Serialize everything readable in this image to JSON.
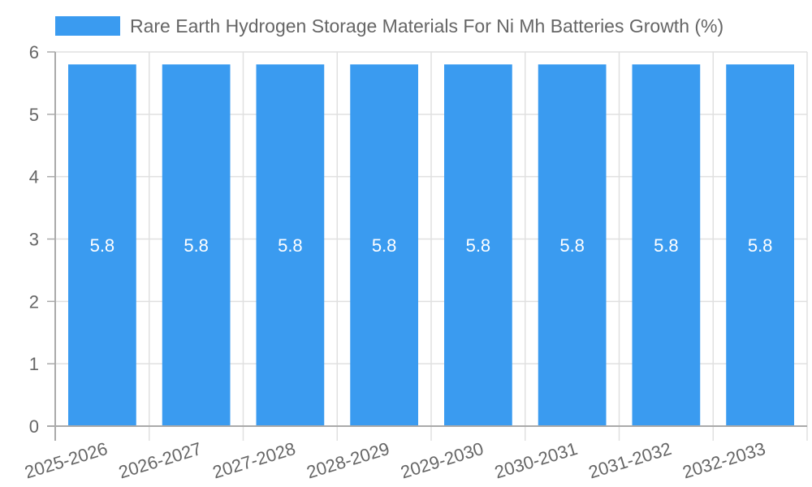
{
  "chart_data": {
    "type": "bar",
    "title": "",
    "xlabel": "",
    "ylabel": "",
    "legend": {
      "entries": [
        "Rare Earth Hydrogen Storage Materials For Ni Mh Batteries Growth (%)"
      ],
      "position": "top"
    },
    "categories": [
      "2025-2026",
      "2026-2027",
      "2027-2028",
      "2028-2029",
      "2029-2030",
      "2030-2031",
      "2031-2032",
      "2032-2033"
    ],
    "series": [
      {
        "name": "Rare Earth Hydrogen Storage Materials For Ni Mh Batteries Growth (%)",
        "values": [
          5.8,
          5.8,
          5.8,
          5.8,
          5.8,
          5.8,
          5.8,
          5.8
        ],
        "color": "#3a9bf0"
      }
    ],
    "data_labels": [
      "5.8",
      "5.8",
      "5.8",
      "5.8",
      "5.8",
      "5.8",
      "5.8",
      "5.8"
    ],
    "ylim": [
      0,
      6
    ],
    "yticks": [
      0,
      1,
      2,
      3,
      4,
      5,
      6
    ],
    "grid": true
  },
  "legend": {
    "label": "Rare Earth Hydrogen Storage Materials For Ni Mh Batteries Growth (%)"
  }
}
